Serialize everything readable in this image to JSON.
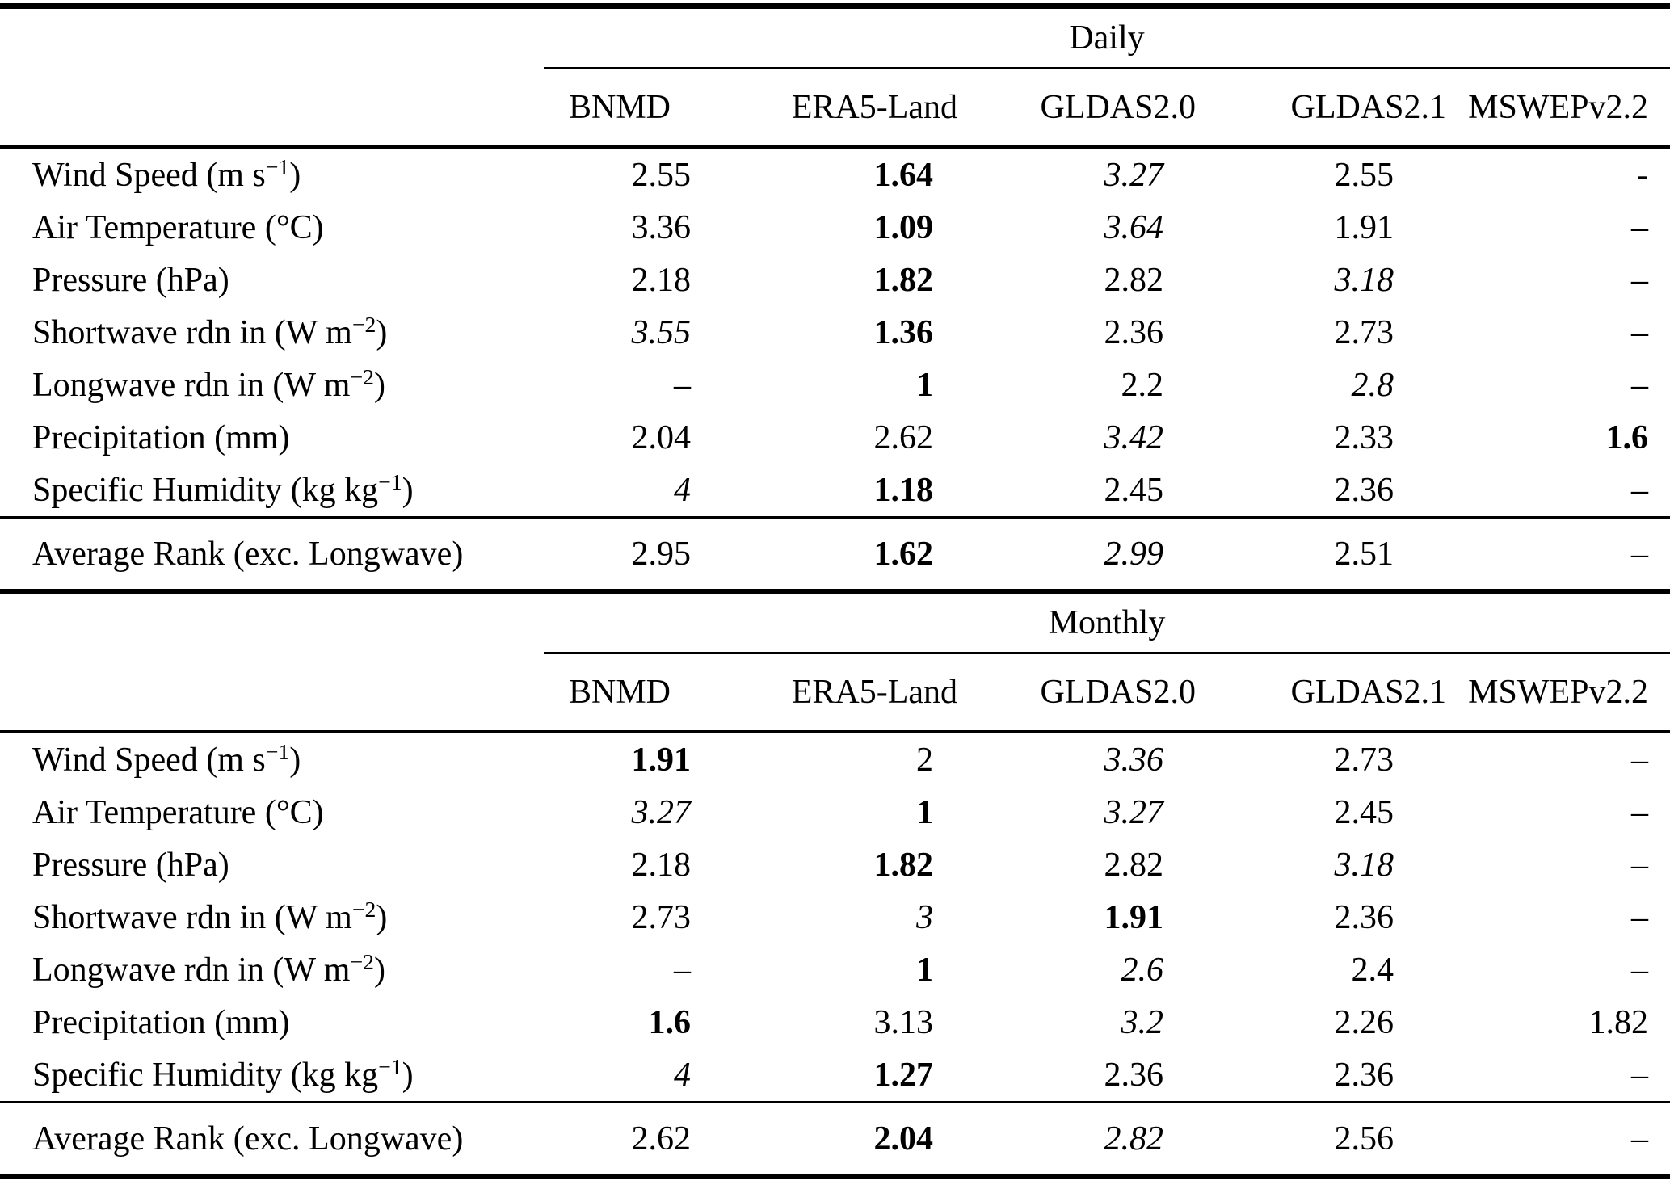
{
  "table": {
    "sections": [
      {
        "title": "Daily",
        "columns": [
          "BNMD",
          "ERA5-Land",
          "GLDAS2.0",
          "GLDAS2.1",
          "MSWEPv2.2"
        ],
        "rows": [
          {
            "pre": "Wind Speed (m s",
            "sup": "−1",
            "post": ")",
            "cells": [
              {
                "v": "2.55",
                "cls": ""
              },
              {
                "v": "1.64",
                "cls": "bold"
              },
              {
                "v": "3.27",
                "cls": "italic"
              },
              {
                "v": "2.55",
                "cls": ""
              },
              {
                "v": "-",
                "cls": ""
              }
            ]
          },
          {
            "pre": "Air Temperature (°C)",
            "sup": "",
            "post": "",
            "cells": [
              {
                "v": "3.36",
                "cls": ""
              },
              {
                "v": "1.09",
                "cls": "bold"
              },
              {
                "v": "3.64",
                "cls": "italic"
              },
              {
                "v": "1.91",
                "cls": ""
              },
              {
                "v": "–",
                "cls": ""
              }
            ]
          },
          {
            "pre": "Pressure (hPa)",
            "sup": "",
            "post": "",
            "cells": [
              {
                "v": "2.18",
                "cls": ""
              },
              {
                "v": "1.82",
                "cls": "bold"
              },
              {
                "v": "2.82",
                "cls": ""
              },
              {
                "v": "3.18",
                "cls": "italic"
              },
              {
                "v": "–",
                "cls": ""
              }
            ]
          },
          {
            "pre": "Shortwave rdn in (W m",
            "sup": "−2",
            "post": ")",
            "cells": [
              {
                "v": "3.55",
                "cls": "italic"
              },
              {
                "v": "1.36",
                "cls": "bold"
              },
              {
                "v": "2.36",
                "cls": ""
              },
              {
                "v": "2.73",
                "cls": ""
              },
              {
                "v": "–",
                "cls": ""
              }
            ]
          },
          {
            "pre": "Longwave rdn in (W m",
            "sup": "−2",
            "post": ")",
            "cells": [
              {
                "v": "–",
                "cls": ""
              },
              {
                "v": "1",
                "cls": "bold"
              },
              {
                "v": "2.2",
                "cls": ""
              },
              {
                "v": "2.8",
                "cls": "italic"
              },
              {
                "v": "–",
                "cls": ""
              }
            ]
          },
          {
            "pre": "Precipitation (mm)",
            "sup": "",
            "post": "",
            "cells": [
              {
                "v": "2.04",
                "cls": ""
              },
              {
                "v": "2.62",
                "cls": ""
              },
              {
                "v": "3.42",
                "cls": "italic"
              },
              {
                "v": "2.33",
                "cls": ""
              },
              {
                "v": "1.6",
                "cls": "bold"
              }
            ]
          },
          {
            "pre": "Specific Humidity (kg kg",
            "sup": "−1",
            "post": ")",
            "cells": [
              {
                "v": "4",
                "cls": "italic"
              },
              {
                "v": "1.18",
                "cls": "bold"
              },
              {
                "v": "2.45",
                "cls": ""
              },
              {
                "v": "2.36",
                "cls": ""
              },
              {
                "v": "–",
                "cls": ""
              }
            ]
          }
        ],
        "summary": {
          "pre": "Average Rank (exc. Longwave)",
          "sup": "",
          "post": "",
          "cells": [
            {
              "v": "2.95",
              "cls": ""
            },
            {
              "v": "1.62",
              "cls": "bold"
            },
            {
              "v": "2.99",
              "cls": "italic"
            },
            {
              "v": "2.51",
              "cls": ""
            },
            {
              "v": "–",
              "cls": ""
            }
          ]
        }
      },
      {
        "title": "Monthly",
        "columns": [
          "BNMD",
          "ERA5-Land",
          "GLDAS2.0",
          "GLDAS2.1",
          "MSWEPv2.2"
        ],
        "rows": [
          {
            "pre": "Wind Speed (m s",
            "sup": "−1",
            "post": ")",
            "cells": [
              {
                "v": "1.91",
                "cls": "bold"
              },
              {
                "v": "2",
                "cls": ""
              },
              {
                "v": "3.36",
                "cls": "italic"
              },
              {
                "v": "2.73",
                "cls": ""
              },
              {
                "v": "–",
                "cls": ""
              }
            ]
          },
          {
            "pre": "Air Temperature (°C)",
            "sup": "",
            "post": "",
            "cells": [
              {
                "v": "3.27",
                "cls": "italic"
              },
              {
                "v": "1",
                "cls": "bold"
              },
              {
                "v": "3.27",
                "cls": "italic"
              },
              {
                "v": "2.45",
                "cls": ""
              },
              {
                "v": "–",
                "cls": ""
              }
            ]
          },
          {
            "pre": "Pressure (hPa)",
            "sup": "",
            "post": "",
            "cells": [
              {
                "v": "2.18",
                "cls": ""
              },
              {
                "v": "1.82",
                "cls": "bold"
              },
              {
                "v": "2.82",
                "cls": ""
              },
              {
                "v": "3.18",
                "cls": "italic"
              },
              {
                "v": "–",
                "cls": ""
              }
            ]
          },
          {
            "pre": "Shortwave rdn in (W m",
            "sup": "−2",
            "post": ")",
            "cells": [
              {
                "v": "2.73",
                "cls": ""
              },
              {
                "v": "3",
                "cls": "italic"
              },
              {
                "v": "1.91",
                "cls": "bold"
              },
              {
                "v": "2.36",
                "cls": ""
              },
              {
                "v": "–",
                "cls": ""
              }
            ]
          },
          {
            "pre": "Longwave rdn in (W m",
            "sup": "−2",
            "post": ")",
            "cells": [
              {
                "v": "–",
                "cls": ""
              },
              {
                "v": "1",
                "cls": "bold"
              },
              {
                "v": "2.6",
                "cls": "italic"
              },
              {
                "v": "2.4",
                "cls": ""
              },
              {
                "v": "–",
                "cls": ""
              }
            ]
          },
          {
            "pre": "Precipitation (mm)",
            "sup": "",
            "post": "",
            "cells": [
              {
                "v": "1.6",
                "cls": "bold"
              },
              {
                "v": "3.13",
                "cls": ""
              },
              {
                "v": "3.2",
                "cls": "italic"
              },
              {
                "v": "2.26",
                "cls": ""
              },
              {
                "v": "1.82",
                "cls": ""
              }
            ]
          },
          {
            "pre": "Specific Humidity (kg kg",
            "sup": "−1",
            "post": ")",
            "cells": [
              {
                "v": "4",
                "cls": "italic"
              },
              {
                "v": "1.27",
                "cls": "bold"
              },
              {
                "v": "2.36",
                "cls": ""
              },
              {
                "v": "2.36",
                "cls": ""
              },
              {
                "v": "–",
                "cls": ""
              }
            ]
          }
        ],
        "summary": {
          "pre": "Average Rank (exc. Longwave)",
          "sup": "",
          "post": "",
          "cells": [
            {
              "v": "2.62",
              "cls": ""
            },
            {
              "v": "2.04",
              "cls": "bold"
            },
            {
              "v": "2.82",
              "cls": "italic"
            },
            {
              "v": "2.56",
              "cls": ""
            },
            {
              "v": "–",
              "cls": ""
            }
          ]
        }
      }
    ]
  }
}
